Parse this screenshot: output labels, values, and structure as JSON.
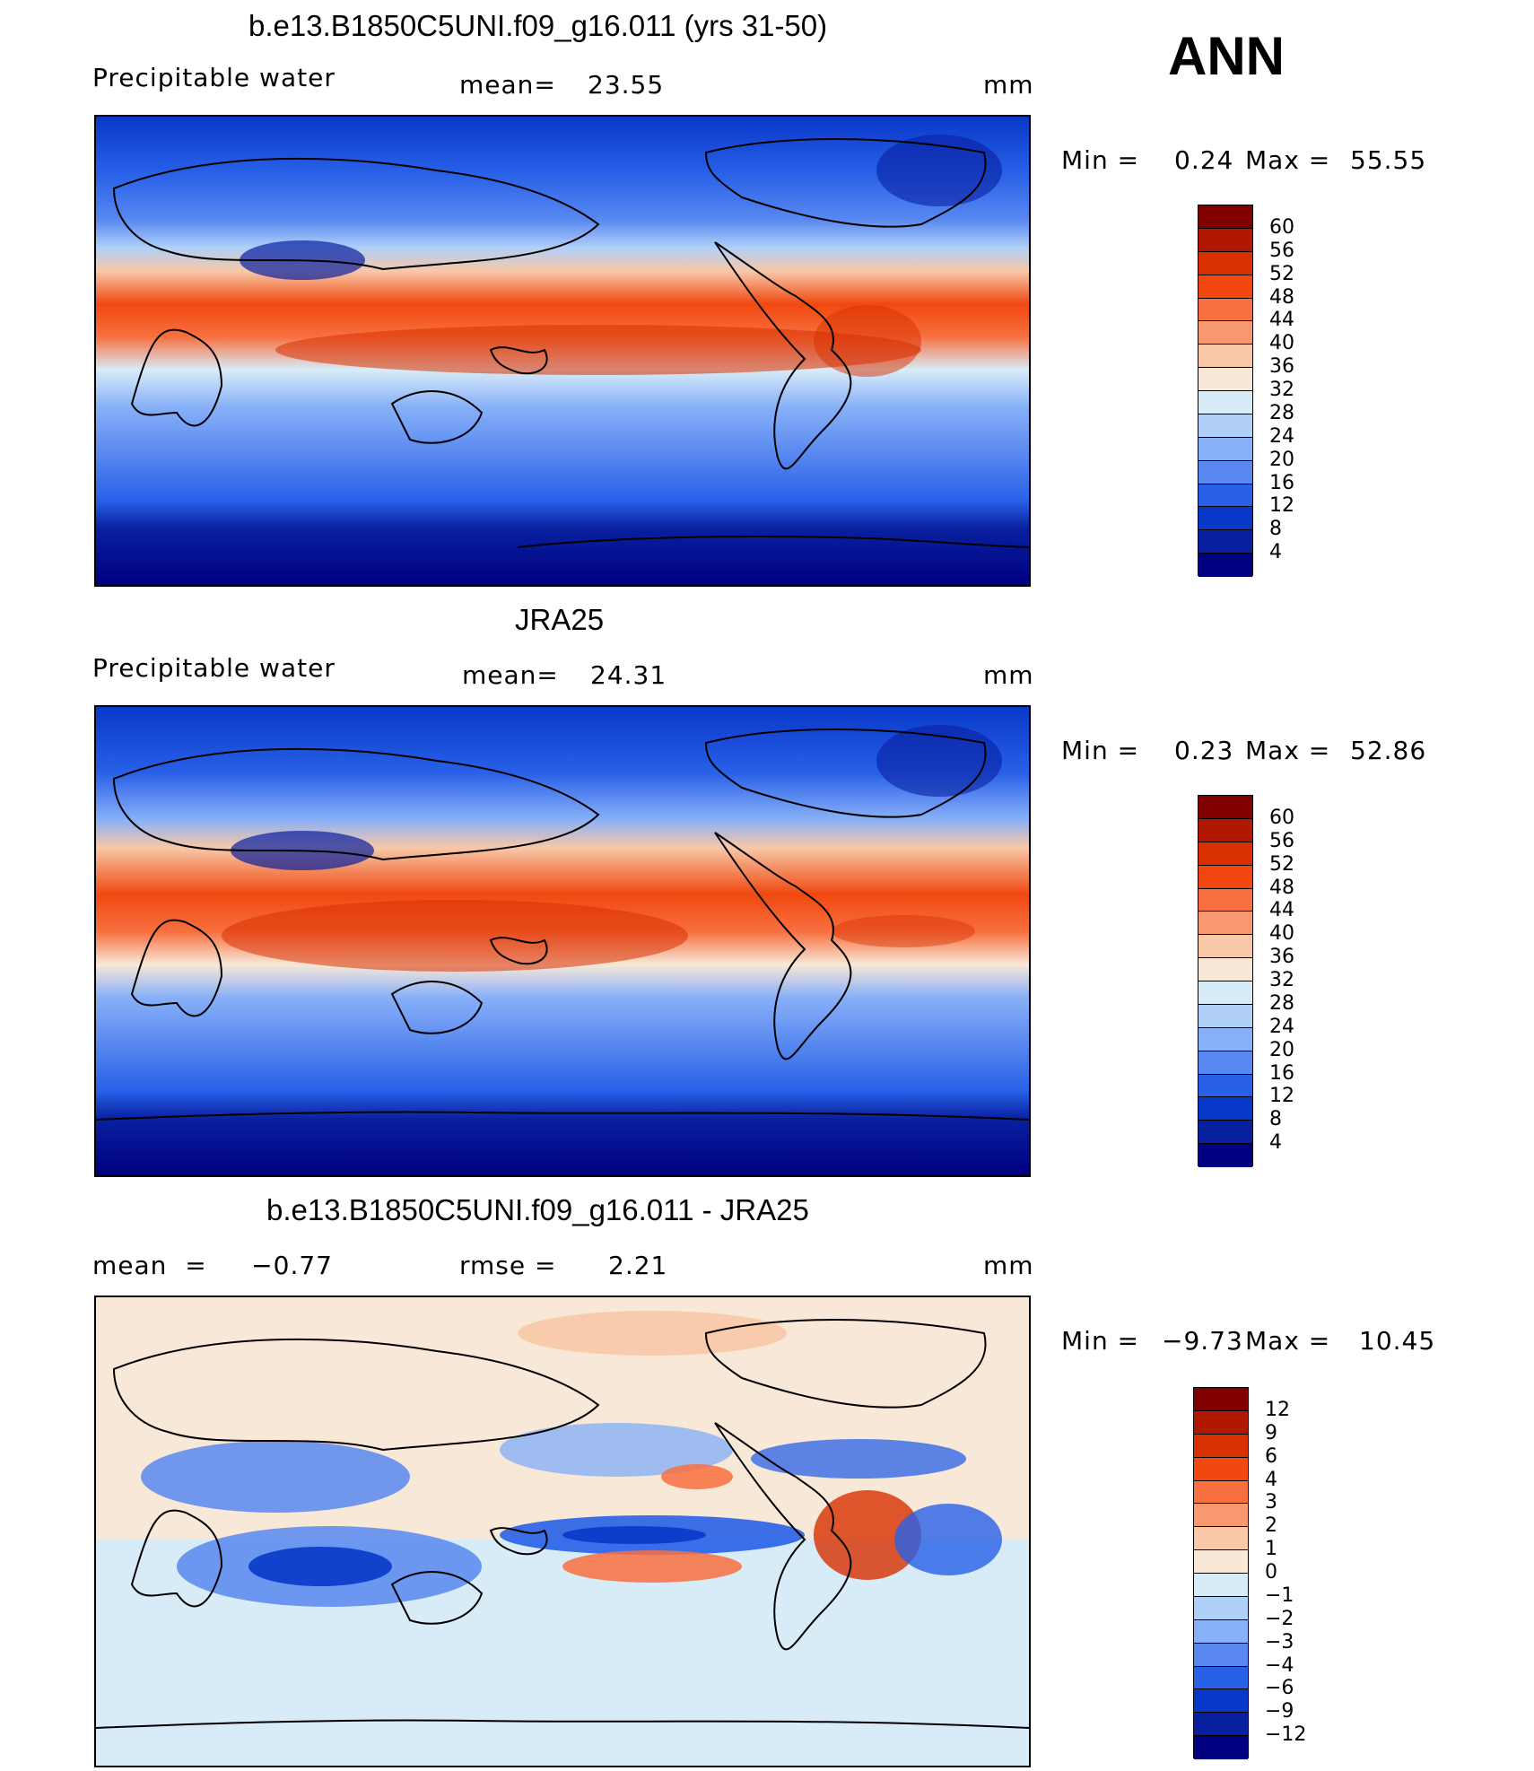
{
  "season": "ANN",
  "units": "mm",
  "panels": [
    {
      "id": "model",
      "title": "b.e13.B1850C5UNI.f09_g16.011 (yrs 31-50)",
      "variable_label": "Precipitable  water",
      "stat_left": "",
      "stat_mid_label": "mean=",
      "stat_mid_value": "23.55",
      "units": "mm",
      "min_label": "Min  =",
      "min_value": "0.24",
      "max_label": "Max  =",
      "max_value": "55.55",
      "colorbar": {
        "labels": [
          "60",
          "56",
          "52",
          "48",
          "44",
          "40",
          "36",
          "32",
          "28",
          "24",
          "20",
          "16",
          "12",
          "8",
          "4"
        ],
        "colors": [
          "#800000",
          "#b01800",
          "#d83000",
          "#f04810",
          "#f87040",
          "#f89870",
          "#f8c8a8",
          "#f8e8d8",
          "#d8ecf8",
          "#b0d0f8",
          "#88b0f8",
          "#5888f0",
          "#2860e8",
          "#0838c8",
          "#0820a0",
          "#000080"
        ]
      }
    },
    {
      "id": "obs",
      "title": "JRA25",
      "variable_label": "Precipitable  water",
      "stat_left": "",
      "stat_mid_label": "mean=",
      "stat_mid_value": "24.31",
      "units": "mm",
      "min_label": "Min  =",
      "min_value": "0.23",
      "max_label": "Max  =",
      "max_value": "52.86",
      "colorbar": {
        "labels": [
          "60",
          "56",
          "52",
          "48",
          "44",
          "40",
          "36",
          "32",
          "28",
          "24",
          "20",
          "16",
          "12",
          "8",
          "4"
        ],
        "colors": [
          "#800000",
          "#b01800",
          "#d83000",
          "#f04810",
          "#f87040",
          "#f89870",
          "#f8c8a8",
          "#f8e8d8",
          "#d8ecf8",
          "#b0d0f8",
          "#88b0f8",
          "#5888f0",
          "#2860e8",
          "#0838c8",
          "#0820a0",
          "#000080"
        ]
      }
    },
    {
      "id": "diff",
      "title": "b.e13.B1850C5UNI.f09_g16.011 - JRA25",
      "variable_label": "",
      "stat_left": "mean  =     −0.77",
      "stat_mid_label": "rmse  =",
      "stat_mid_value": "2.21",
      "units": "mm",
      "min_label": "Min  =",
      "min_value": "−9.73",
      "max_label": "Max  =",
      "max_value": "10.45",
      "colorbar": {
        "labels": [
          "12",
          "9",
          "6",
          "4",
          "3",
          "2",
          "1",
          "0",
          "−1",
          "−2",
          "−3",
          "−4",
          "−6",
          "−9",
          "−12"
        ],
        "colors": [
          "#800000",
          "#b01800",
          "#d83000",
          "#f04810",
          "#f87040",
          "#f89870",
          "#f8c8a8",
          "#f8e8d8",
          "#d8ecf8",
          "#b0d0f8",
          "#88b0f8",
          "#5888f0",
          "#2860e8",
          "#0838c8",
          "#0820a0",
          "#000080"
        ]
      }
    }
  ]
}
